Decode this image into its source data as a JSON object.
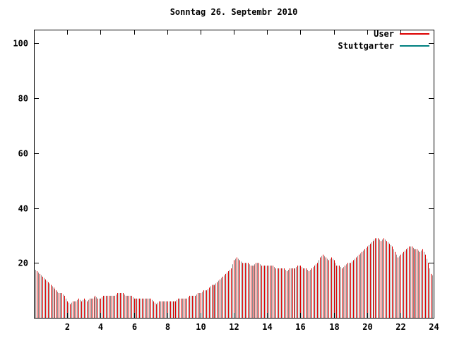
{
  "title": "Sonntag 26. Septembr 2010",
  "legend": {
    "items": [
      {
        "label": "User",
        "color": "#dd0000"
      },
      {
        "label": "Stuttgarter",
        "color": "#008080"
      }
    ]
  },
  "colors": {
    "background": "#ffffff",
    "axis": "#000000",
    "impulse_primary": "#dd0000",
    "impulse_secondary": "#8a8a8a"
  },
  "chart_data": {
    "type": "bar",
    "style": "impulses",
    "title": "Sonntag 26. Septembr 2010",
    "xlabel": "",
    "ylabel": "",
    "x_unit": "hour of day",
    "xlim": [
      0,
      24
    ],
    "ylim": [
      0,
      105
    ],
    "x_ticks": [
      2,
      4,
      6,
      8,
      10,
      12,
      14,
      16,
      18,
      20,
      22,
      24
    ],
    "y_ticks": [
      20,
      40,
      60,
      80,
      100
    ],
    "x_start": 0,
    "x_step_hours": 0.1666667,
    "grid": false,
    "legend_position": "top-right-inside",
    "series": [
      {
        "name": "User",
        "color": "#dd0000",
        "values": [
          18,
          17,
          16,
          15,
          14,
          13,
          12,
          11,
          10,
          9,
          9,
          8,
          6,
          5,
          6,
          6,
          7,
          6,
          7,
          6,
          7,
          7,
          8,
          7,
          7,
          8,
          8,
          8,
          8,
          8,
          9,
          9,
          9,
          8,
          8,
          8,
          7,
          7,
          7,
          7,
          7,
          7,
          7,
          6,
          5,
          6,
          6,
          6,
          6,
          6,
          6,
          6,
          7,
          7,
          7,
          7,
          8,
          8,
          8,
          9,
          9,
          10,
          10,
          11,
          12,
          12,
          13,
          14,
          15,
          16,
          17,
          18,
          21,
          22,
          21,
          20,
          20,
          20,
          19,
          19,
          20,
          20,
          19,
          19,
          19,
          19,
          19,
          18,
          18,
          18,
          18,
          17,
          18,
          18,
          18,
          19,
          19,
          18,
          18,
          17,
          18,
          19,
          20,
          22,
          23,
          22,
          21,
          22,
          21,
          19,
          19,
          18,
          19,
          20,
          20,
          21,
          22,
          23,
          24,
          25,
          26,
          27,
          28,
          29,
          29,
          28,
          29,
          28,
          27,
          26,
          24,
          22,
          23,
          24,
          25,
          26,
          26,
          25,
          25,
          24,
          25,
          23,
          20,
          16,
          15
        ]
      },
      {
        "name": "Stuttgarter",
        "color": "#008080",
        "values": []
      }
    ]
  }
}
